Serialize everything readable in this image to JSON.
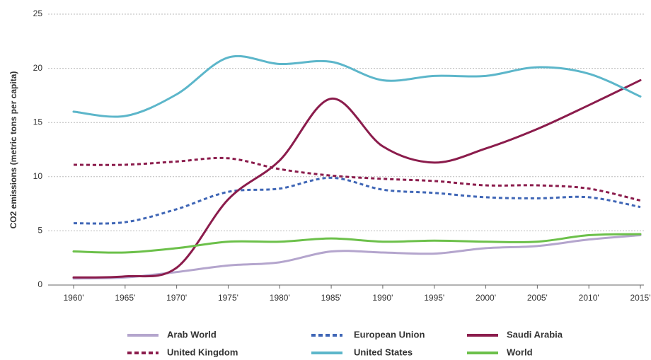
{
  "chart_data": {
    "type": "line",
    "y_label": "CO2 emissions (metric tons per capita)",
    "categories": [
      "1960'",
      "1965'",
      "1970'",
      "1975'",
      "1980'",
      "1985'",
      "1990'",
      "1995'",
      "2000'",
      "2005'",
      "2010'",
      "2015'"
    ],
    "series": [
      {
        "name": "Arab World",
        "color": "#b4a5cd",
        "dashed": false,
        "values": [
          0.6,
          0.7,
          1.2,
          1.8,
          2.1,
          3.1,
          3.0,
          2.9,
          3.4,
          3.6,
          4.2,
          4.6
        ]
      },
      {
        "name": "European Union",
        "color": "#3f66b6",
        "dashed": true,
        "values": [
          5.7,
          5.8,
          7.0,
          8.6,
          8.9,
          9.9,
          8.8,
          8.5,
          8.1,
          8.0,
          8.1,
          7.2
        ]
      },
      {
        "name": "Saudi Arabia",
        "color": "#8b1c4c",
        "dashed": false,
        "values": [
          0.7,
          0.8,
          1.6,
          7.9,
          11.5,
          17.2,
          12.8,
          11.3,
          12.6,
          14.4,
          16.6,
          18.9
        ]
      },
      {
        "name": "United Kingdom",
        "color": "#8b1c4c",
        "dashed": true,
        "values": [
          11.1,
          11.1,
          11.4,
          11.7,
          10.7,
          10.1,
          9.8,
          9.6,
          9.2,
          9.2,
          8.9,
          7.8
        ]
      },
      {
        "name": "United States",
        "color": "#5cb6ca",
        "dashed": false,
        "values": [
          16.0,
          15.6,
          17.6,
          21.0,
          20.4,
          20.6,
          18.9,
          19.3,
          19.3,
          20.1,
          19.5,
          17.4
        ]
      },
      {
        "name": "World",
        "color": "#6cc04a",
        "dashed": false,
        "values": [
          3.1,
          3.0,
          3.4,
          4.0,
          4.0,
          4.3,
          4.0,
          4.1,
          4.0,
          4.0,
          4.6,
          4.7
        ]
      }
    ],
    "ylim": [
      0,
      25
    ],
    "yticks": [
      0,
      5,
      10,
      15,
      20,
      25
    ],
    "grid": true
  }
}
